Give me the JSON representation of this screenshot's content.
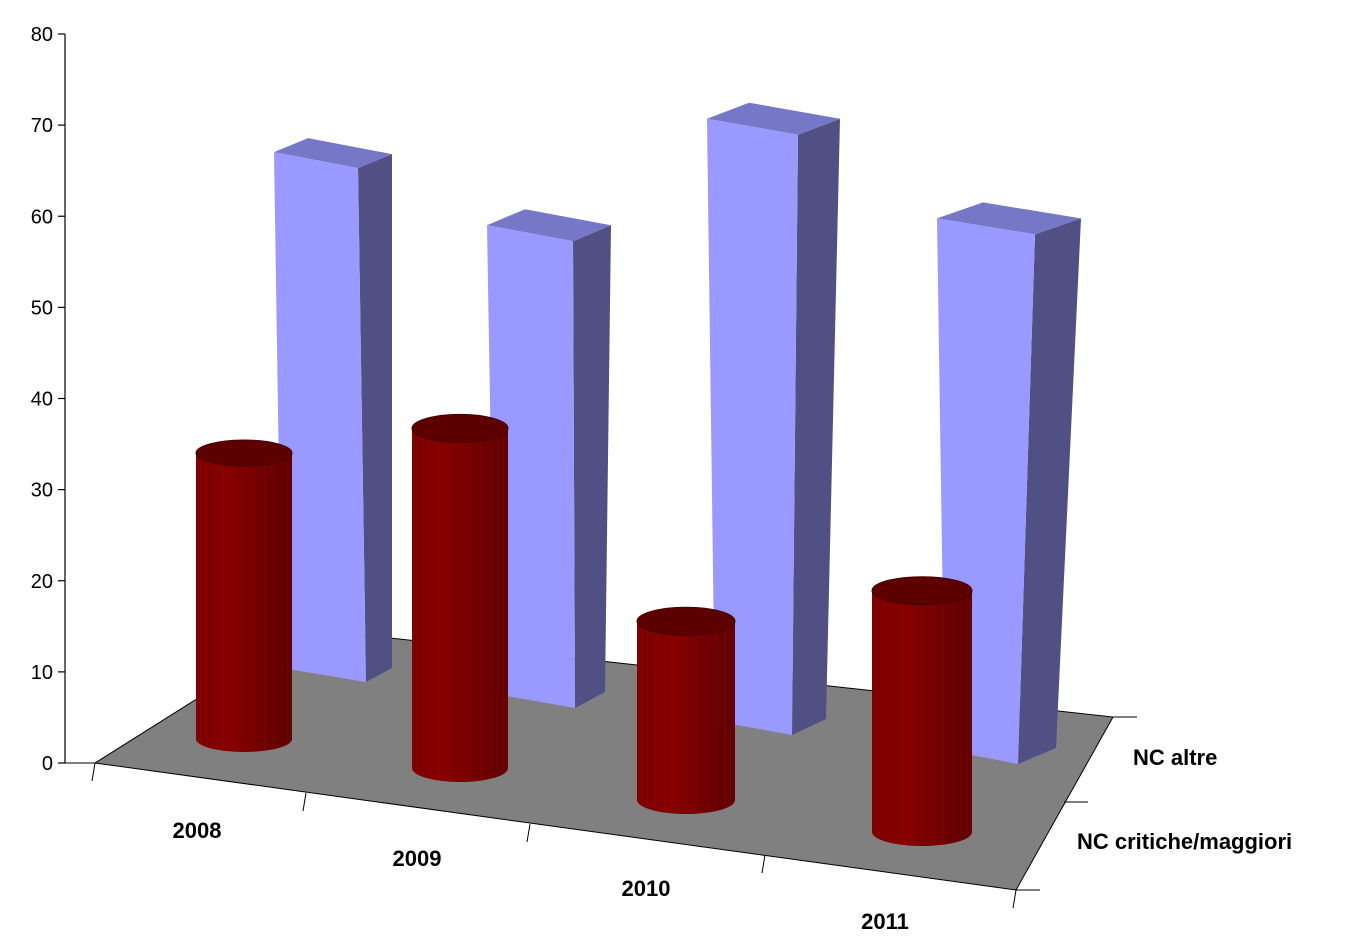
{
  "chart_data": {
    "type": "bar",
    "categories": [
      "2008",
      "2009",
      "2010",
      "2011"
    ],
    "series": [
      {
        "name": "NC critiche/maggiori",
        "values": [
          32,
          38,
          20,
          27
        ],
        "color": "#800000",
        "shape": "cylinder"
      },
      {
        "name": "NC altre",
        "values": [
          67,
          61,
          78,
          69
        ],
        "color": "#9999ff",
        "shape": "box"
      }
    ],
    "yticks": [
      0,
      10,
      20,
      30,
      40,
      50,
      60,
      70,
      80
    ],
    "ylim": [
      0,
      80
    ],
    "floor_color": "#808080",
    "grid": false,
    "title": "",
    "xlabel": "",
    "ylabel": ""
  }
}
